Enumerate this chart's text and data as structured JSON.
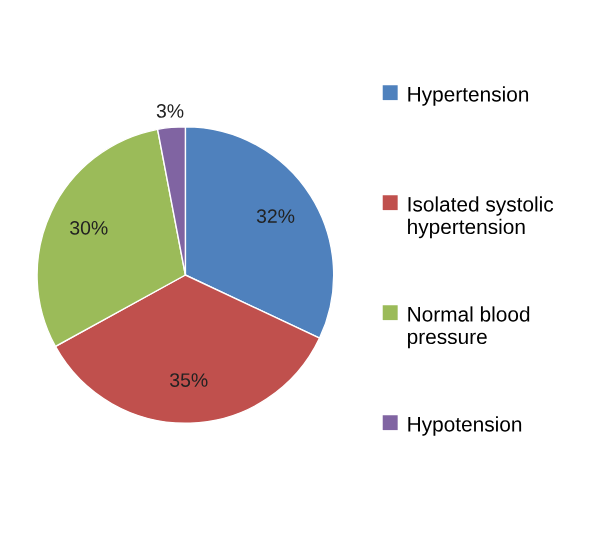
{
  "chart_data": {
    "type": "pie",
    "categories": [
      "Hypertension",
      "Isolated systolic hypertension",
      "Normal blood pressure",
      "Hypotension"
    ],
    "values": [
      32,
      35,
      30,
      3
    ],
    "colors": [
      "#4f81bd",
      "#c0504d",
      "#9bbb59",
      "#8064a2"
    ],
    "value_labels": [
      "32%",
      "35%",
      "30%",
      "3%"
    ],
    "legend": "right"
  }
}
